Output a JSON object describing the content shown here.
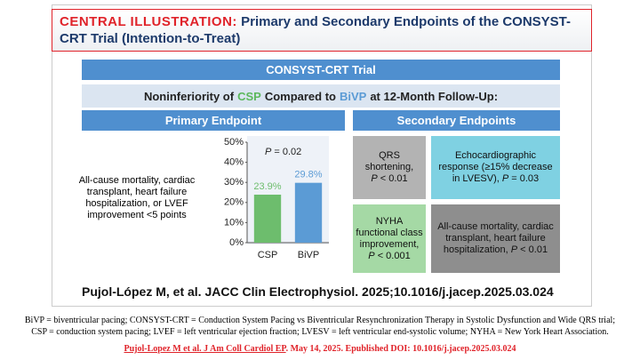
{
  "header": {
    "label": "CENTRAL ILLUSTRATION:",
    "title": "Primary and Secondary Endpoints of the CONSYST-CRT Trial (Intention-to-Treat)"
  },
  "banner": "CONSYST-CRT Trial",
  "subbanner": {
    "pre": "Noninferiority of",
    "csp": "CSP",
    "mid": "Compared to",
    "bivp": "BiVP",
    "post": "at 12-Month Follow-Up:"
  },
  "primary": {
    "heading": "Primary Endpoint",
    "description": "All-cause mortality, cardiac transplant, heart failure hospitalization, or LVEF improvement <5 points"
  },
  "chart_data": {
    "type": "bar",
    "annotation": {
      "p": "P",
      "stat": "= 0.02"
    },
    "categories": [
      "CSP",
      "BiVP"
    ],
    "values": [
      23.9,
      29.8
    ],
    "value_labels": [
      "23.9%",
      "29.8%"
    ],
    "colors": [
      "#6dbd6d",
      "#5b9bd5"
    ],
    "ylim": [
      0,
      50
    ],
    "yticks": [
      {
        "value": 0,
        "label": "0%"
      },
      {
        "value": 10,
        "label": "10%"
      },
      {
        "value": 20,
        "label": "20%"
      },
      {
        "value": 30,
        "label": "30%"
      },
      {
        "value": 40,
        "label": "40%"
      },
      {
        "value": 50,
        "label": "50%"
      }
    ]
  },
  "secondary": {
    "heading": "Secondary Endpoints",
    "boxes": [
      {
        "text": "QRS shortening,",
        "p": "P",
        "stat": "< 0.01"
      },
      {
        "text": "Echocardiographic response (≥15% decrease in LVESV),",
        "p": "P",
        "stat": "= 0.03"
      },
      {
        "text": "NYHA functional class improvement,",
        "p": "P",
        "stat": "< 0.001"
      },
      {
        "text": "All-cause mortality, cardiac transplant, heart failure hospitalization,",
        "p": "P",
        "stat": "< 0.01"
      }
    ]
  },
  "citation": "Pujol-López M, et al. JACC Clin Electrophysiol. 2025;10.1016/j.jacep.2025.03.024",
  "footer": {
    "abbreviations": [
      "BiVP = biventricular pacing; CONSYST-CRT = Conduction System Pacing vs Biventricular Resynchronization Therapy in Systolic Dysfunction and Wide QRS trial;",
      "CSP = conduction system pacing; LVEF = left ventricular ejection fraction; LVESV = left ventricular end-systolic volume; NYHA = New York Heart Association."
    ],
    "link": "Pujol-Lopez M et al. J Am Coll Cardiol EP",
    "link_rest": ". May 14, 2025. Epublished DOI: 10.1016/j.jacep.2025.03.024"
  }
}
